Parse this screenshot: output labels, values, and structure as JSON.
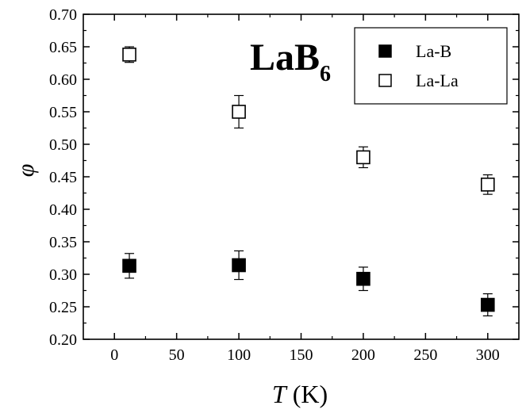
{
  "chart_data": {
    "type": "scatter",
    "title": "LaB",
    "title_subscript": "6",
    "xlabel_symbol": "T",
    "xlabel_unit": " (K)",
    "ylabel": "φ",
    "xlim": [
      -25,
      325
    ],
    "ylim": [
      0.2,
      0.7
    ],
    "xticks": [
      "0",
      "50",
      "100",
      "150",
      "200",
      "250",
      "300"
    ],
    "yticks": [
      "0.20",
      "0.25",
      "0.30",
      "0.35",
      "0.40",
      "0.45",
      "0.50",
      "0.55",
      "0.60",
      "0.65",
      "0.70"
    ],
    "legend_position": "top-right",
    "grid": false,
    "series": [
      {
        "name": "La-B",
        "marker": "filled-square",
        "color": "#000000",
        "x": [
          12,
          100,
          200,
          300
        ],
        "y": [
          0.313,
          0.314,
          0.293,
          0.253
        ],
        "err": [
          0.019,
          0.022,
          0.018,
          0.017
        ]
      },
      {
        "name": "La-La",
        "marker": "open-square",
        "color": "#000000",
        "x": [
          12,
          100,
          200,
          300
        ],
        "y": [
          0.638,
          0.55,
          0.48,
          0.438
        ],
        "err": [
          0.012,
          0.025,
          0.016,
          0.015
        ]
      }
    ]
  }
}
